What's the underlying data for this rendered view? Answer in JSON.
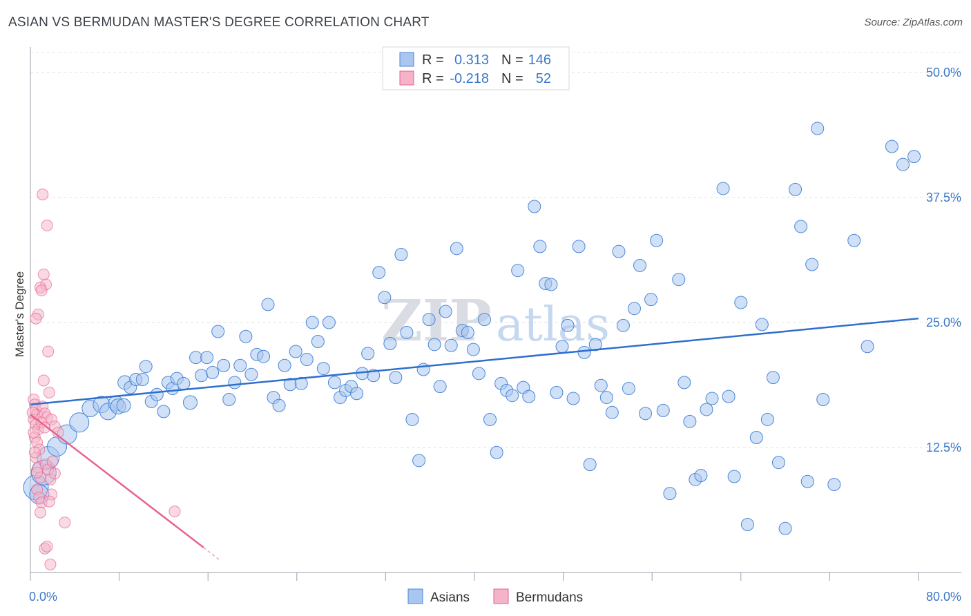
{
  "title": "ASIAN VS BERMUDAN MASTER'S DEGREE CORRELATION CHART",
  "source": "Source: ZipAtlas.com",
  "watermark": {
    "zip": "ZIP",
    "atlas": "atlas"
  },
  "colors": {
    "asian": "#4a86d8",
    "asian_fill": "#a9c6ef",
    "bermudan": "#e8628f",
    "bermudan_fill": "#f4b3c8",
    "tick": "#3b78c9"
  },
  "legend": {
    "asian": {
      "r_label": "R =",
      "r_value": "0.313",
      "n_label": "N =",
      "n_value": "146"
    },
    "bermudan": {
      "r_label": "R =",
      "r_value": "-0.218",
      "n_label": "N =",
      "n_value": "52"
    }
  },
  "bottom_legend": {
    "asian": "Asians",
    "bermudan": "Bermudans"
  },
  "chart_data": {
    "type": "scatter",
    "title": "ASIAN VS BERMUDAN MASTER'S DEGREE CORRELATION CHART",
    "xlabel": "",
    "ylabel": "Master's Degree",
    "xlim": [
      0,
      80
    ],
    "ylim": [
      0,
      52
    ],
    "x_tick_labels": [
      "0.0%",
      "80.0%"
    ],
    "y_ticks": [
      12.5,
      25.0,
      37.5,
      50.0
    ],
    "y_tick_labels": [
      "12.5%",
      "25.0%",
      "37.5%",
      "50.0%"
    ],
    "grid": "horizontal-dashed",
    "legend_position": "top-center",
    "series": [
      {
        "name": "Asians",
        "trend": {
          "x": [
            0,
            80
          ],
          "y": [
            16.8,
            25.4
          ]
        },
        "points": [
          [
            0.5,
            8.5,
            18
          ],
          [
            0.8,
            7.8,
            14
          ],
          [
            1.2,
            10.0,
            18
          ],
          [
            1.6,
            11.5,
            16
          ],
          [
            2.4,
            12.6,
            14
          ],
          [
            3.3,
            13.8,
            14
          ],
          [
            4.4,
            15.0,
            14
          ],
          [
            5.4,
            16.4,
            12
          ],
          [
            6.4,
            16.8,
            12
          ],
          [
            7.0,
            16.1,
            12
          ],
          [
            7.7,
            16.9,
            11
          ],
          [
            7.9,
            16.6,
            11
          ],
          [
            8.4,
            16.7,
            10
          ],
          [
            8.5,
            19.0,
            10
          ],
          [
            9.0,
            18.5,
            9
          ],
          [
            9.5,
            19.3,
            9
          ],
          [
            10.1,
            19.3,
            9
          ],
          [
            10.4,
            20.6,
            9
          ],
          [
            10.9,
            17.1,
            9
          ],
          [
            11.4,
            17.8,
            9
          ],
          [
            12.0,
            16.1,
            9
          ],
          [
            12.4,
            19.0,
            9
          ],
          [
            12.8,
            18.4,
            9
          ],
          [
            13.2,
            19.4,
            9
          ],
          [
            13.8,
            18.9,
            9
          ],
          [
            14.4,
            17.0,
            10
          ],
          [
            14.9,
            21.5,
            9
          ],
          [
            15.4,
            19.7,
            9
          ],
          [
            15.9,
            21.5,
            9
          ],
          [
            16.4,
            20.0,
            9
          ],
          [
            16.9,
            24.1,
            9
          ],
          [
            17.4,
            20.7,
            9
          ],
          [
            17.9,
            17.3,
            9
          ],
          [
            18.4,
            19.0,
            9
          ],
          [
            18.9,
            20.7,
            9
          ],
          [
            19.4,
            23.6,
            9
          ],
          [
            19.9,
            19.8,
            9
          ],
          [
            20.4,
            21.8,
            9
          ],
          [
            21.0,
            21.6,
            9
          ],
          [
            21.4,
            26.8,
            9
          ],
          [
            21.9,
            17.5,
            9
          ],
          [
            22.4,
            16.7,
            9
          ],
          [
            22.9,
            20.7,
            9
          ],
          [
            23.4,
            18.8,
            9
          ],
          [
            23.9,
            22.1,
            9
          ],
          [
            24.4,
            18.9,
            9
          ],
          [
            24.9,
            21.3,
            9
          ],
          [
            25.4,
            25.0,
            9
          ],
          [
            25.9,
            23.1,
            9
          ],
          [
            26.4,
            20.4,
            9
          ],
          [
            26.9,
            25.0,
            9
          ],
          [
            27.4,
            19.0,
            9
          ],
          [
            27.9,
            17.5,
            9
          ],
          [
            28.4,
            18.2,
            9
          ],
          [
            28.9,
            18.6,
            9
          ],
          [
            29.4,
            17.9,
            9
          ],
          [
            29.9,
            19.9,
            9
          ],
          [
            30.4,
            21.9,
            9
          ],
          [
            30.9,
            19.7,
            9
          ],
          [
            31.4,
            30.0,
            9
          ],
          [
            31.9,
            27.5,
            9
          ],
          [
            32.4,
            22.9,
            9
          ],
          [
            32.9,
            19.5,
            9
          ],
          [
            33.4,
            31.8,
            9
          ],
          [
            33.9,
            24.0,
            9
          ],
          [
            34.4,
            15.3,
            9
          ],
          [
            35.0,
            11.2,
            9
          ],
          [
            35.4,
            20.3,
            9
          ],
          [
            35.9,
            25.3,
            9
          ],
          [
            36.4,
            22.8,
            9
          ],
          [
            36.9,
            18.6,
            9
          ],
          [
            37.4,
            26.1,
            9
          ],
          [
            37.9,
            22.7,
            9
          ],
          [
            38.4,
            32.4,
            9
          ],
          [
            38.9,
            24.2,
            9
          ],
          [
            39.4,
            24.0,
            9
          ],
          [
            39.9,
            22.3,
            9
          ],
          [
            40.4,
            19.9,
            9
          ],
          [
            40.9,
            25.3,
            9
          ],
          [
            41.4,
            15.3,
            9
          ],
          [
            42.0,
            12.0,
            9
          ],
          [
            42.4,
            18.9,
            9
          ],
          [
            42.9,
            18.2,
            9
          ],
          [
            43.4,
            17.7,
            9
          ],
          [
            43.9,
            30.2,
            9
          ],
          [
            44.4,
            18.5,
            9
          ],
          [
            44.9,
            17.6,
            9
          ],
          [
            45.4,
            36.6,
            9
          ],
          [
            45.9,
            32.6,
            9
          ],
          [
            46.4,
            28.9,
            9
          ],
          [
            46.9,
            28.8,
            9
          ],
          [
            47.4,
            18.0,
            9
          ],
          [
            47.9,
            22.6,
            9
          ],
          [
            48.4,
            24.7,
            9
          ],
          [
            48.9,
            17.4,
            9
          ],
          [
            49.4,
            32.6,
            9
          ],
          [
            49.9,
            22.0,
            9
          ],
          [
            50.4,
            10.8,
            9
          ],
          [
            50.9,
            22.8,
            9
          ],
          [
            51.4,
            18.7,
            9
          ],
          [
            51.9,
            17.5,
            9
          ],
          [
            52.4,
            16.0,
            9
          ],
          [
            53.0,
            32.1,
            9
          ],
          [
            53.4,
            24.7,
            9
          ],
          [
            53.9,
            18.4,
            9
          ],
          [
            54.4,
            26.4,
            9
          ],
          [
            54.9,
            30.7,
            9
          ],
          [
            55.4,
            15.9,
            9
          ],
          [
            55.9,
            27.3,
            9
          ],
          [
            56.4,
            33.2,
            9
          ],
          [
            57.0,
            16.2,
            9
          ],
          [
            57.6,
            7.9,
            9
          ],
          [
            58.4,
            29.3,
            9
          ],
          [
            58.9,
            19.0,
            9
          ],
          [
            59.4,
            15.1,
            9
          ],
          [
            59.9,
            9.3,
            9
          ],
          [
            60.4,
            9.7,
            9
          ],
          [
            60.9,
            16.3,
            9
          ],
          [
            61.4,
            17.4,
            9
          ],
          [
            62.4,
            38.4,
            9
          ],
          [
            62.9,
            17.6,
            9
          ],
          [
            63.4,
            9.6,
            9
          ],
          [
            64.0,
            27.0,
            9
          ],
          [
            64.6,
            4.8,
            9
          ],
          [
            65.4,
            13.5,
            9
          ],
          [
            65.9,
            24.8,
            9
          ],
          [
            66.4,
            15.3,
            9
          ],
          [
            66.9,
            19.5,
            9
          ],
          [
            67.4,
            11.0,
            9
          ],
          [
            68.0,
            4.4,
            9
          ],
          [
            68.9,
            38.3,
            9
          ],
          [
            69.4,
            34.6,
            9
          ],
          [
            70.0,
            9.1,
            9
          ],
          [
            70.4,
            30.8,
            9
          ],
          [
            70.9,
            44.4,
            9
          ],
          [
            71.4,
            17.3,
            9
          ],
          [
            72.4,
            8.8,
            9
          ],
          [
            74.2,
            33.2,
            9
          ],
          [
            75.4,
            22.6,
            9
          ],
          [
            77.6,
            42.6,
            9
          ],
          [
            78.6,
            40.8,
            9
          ],
          [
            79.6,
            41.6,
            9
          ]
        ]
      },
      {
        "name": "Bermudans",
        "trend": {
          "x": [
            0,
            15.6
          ],
          "y": [
            15.8,
            2.5
          ]
        },
        "trend_dashed": {
          "x": [
            15.6,
            17.1
          ],
          "y": [
            2.5,
            1.2
          ]
        },
        "points": [
          [
            0.3,
            17.3
          ],
          [
            0.4,
            16.8
          ],
          [
            0.5,
            16.3
          ],
          [
            0.6,
            15.8
          ],
          [
            0.3,
            15.3
          ],
          [
            0.5,
            14.8
          ],
          [
            0.7,
            14.3
          ],
          [
            0.4,
            13.5
          ],
          [
            0.6,
            13.0
          ],
          [
            0.8,
            12.3
          ],
          [
            0.5,
            11.5
          ],
          [
            0.7,
            10.5
          ],
          [
            0.9,
            9.5
          ],
          [
            0.6,
            8.3
          ],
          [
            0.8,
            7.5
          ],
          [
            1.0,
            7.0
          ],
          [
            0.9,
            6.0
          ],
          [
            1.1,
            16.6
          ],
          [
            1.3,
            15.9
          ],
          [
            1.5,
            15.5
          ],
          [
            1.0,
            15.0
          ],
          [
            1.3,
            14.5
          ],
          [
            1.2,
            19.2
          ],
          [
            1.4,
            10.8
          ],
          [
            1.6,
            10.3
          ],
          [
            1.8,
            9.3
          ],
          [
            1.1,
            37.8
          ],
          [
            1.5,
            34.7
          ],
          [
            1.2,
            29.8
          ],
          [
            1.4,
            28.8
          ],
          [
            0.9,
            28.5
          ],
          [
            1.0,
            28.2
          ],
          [
            0.7,
            25.8
          ],
          [
            0.5,
            25.4
          ],
          [
            1.6,
            22.1
          ],
          [
            1.7,
            18.0
          ],
          [
            1.9,
            15.3
          ],
          [
            2.2,
            14.6
          ],
          [
            2.0,
            11.1
          ],
          [
            2.2,
            9.9
          ],
          [
            1.9,
            7.8
          ],
          [
            1.7,
            7.1
          ],
          [
            1.3,
            2.4
          ],
          [
            1.5,
            2.6
          ],
          [
            1.8,
            0.8
          ],
          [
            3.1,
            5.0
          ],
          [
            13.0,
            6.1
          ],
          [
            0.2,
            16.0
          ],
          [
            0.3,
            14.0
          ],
          [
            0.4,
            12.0
          ],
          [
            0.6,
            10.0
          ],
          [
            2.5,
            14.0
          ]
        ]
      }
    ]
  }
}
